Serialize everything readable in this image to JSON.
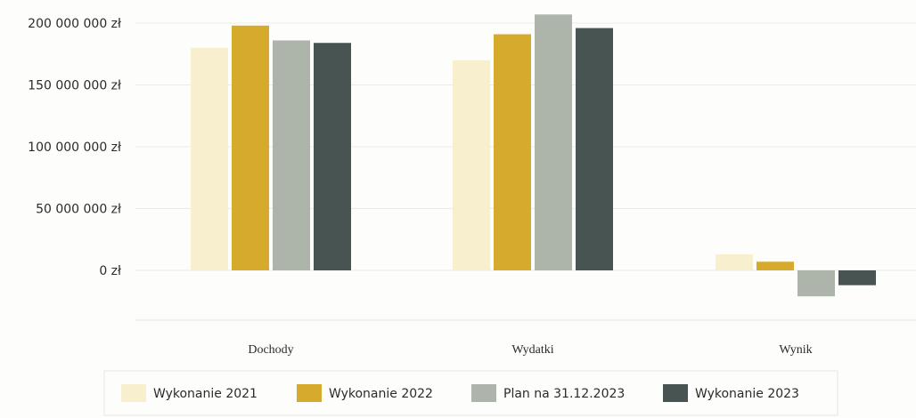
{
  "chart_data": {
    "type": "bar",
    "categories": [
      "Dochody",
      "Wydatki",
      "Wynik"
    ],
    "series": [
      {
        "name": "Wykonanie 2021",
        "color": "#f8efcf",
        "values": [
          180000000,
          170000000,
          13000000
        ]
      },
      {
        "name": "Wykonanie 2022",
        "color": "#d6aa2c",
        "values": [
          198000000,
          191000000,
          7000000
        ]
      },
      {
        "name": "Plan na 31.12.2023",
        "color": "#adb4aa",
        "values": [
          186000000,
          207000000,
          -21000000
        ]
      },
      {
        "name": "Wykonanie 2023",
        "color": "#475451",
        "values": [
          184000000,
          196000000,
          -12000000
        ]
      }
    ],
    "yticks": [
      {
        "value": 200000000,
        "label": "200 000 000 zł"
      },
      {
        "value": 150000000,
        "label": "150 000 000 zł"
      },
      {
        "value": 100000000,
        "label": "100 000 000 zł"
      },
      {
        "value": 50000000,
        "label": "50 000 000 zł"
      },
      {
        "value": 0,
        "label": "0 zł"
      }
    ],
    "ylim": [
      -40000000,
      210000000
    ],
    "grid": true,
    "legend_position": "bottom"
  }
}
